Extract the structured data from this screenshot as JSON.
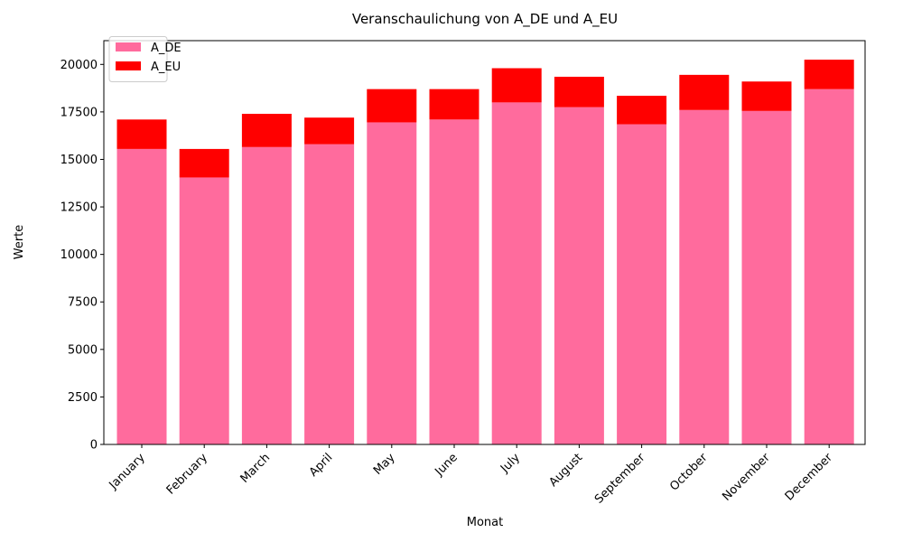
{
  "chart_data": {
    "type": "bar",
    "stacked": true,
    "title": "Veranschaulichung von A_DE und A_EU",
    "xlabel": "Monat",
    "ylabel": "Werte",
    "categories": [
      "January",
      "February",
      "March",
      "April",
      "May",
      "June",
      "July",
      "August",
      "September",
      "October",
      "November",
      "December"
    ],
    "series": [
      {
        "name": "A_DE",
        "color": "#ff6b9d",
        "values": [
          15550,
          14050,
          15650,
          15800,
          16950,
          17100,
          18000,
          17750,
          16850,
          17600,
          17550,
          18700
        ]
      },
      {
        "name": "A_EU",
        "color": "#ff0000",
        "values": [
          1550,
          1500,
          1750,
          1400,
          1750,
          1600,
          1800,
          1600,
          1500,
          1850,
          1550,
          1550
        ]
      }
    ],
    "ylim": [
      0,
      21250
    ],
    "yticks": [
      0,
      2500,
      5000,
      7500,
      10000,
      12500,
      15000,
      17500,
      20000
    ],
    "grid": false,
    "legend_position": "top-left"
  }
}
